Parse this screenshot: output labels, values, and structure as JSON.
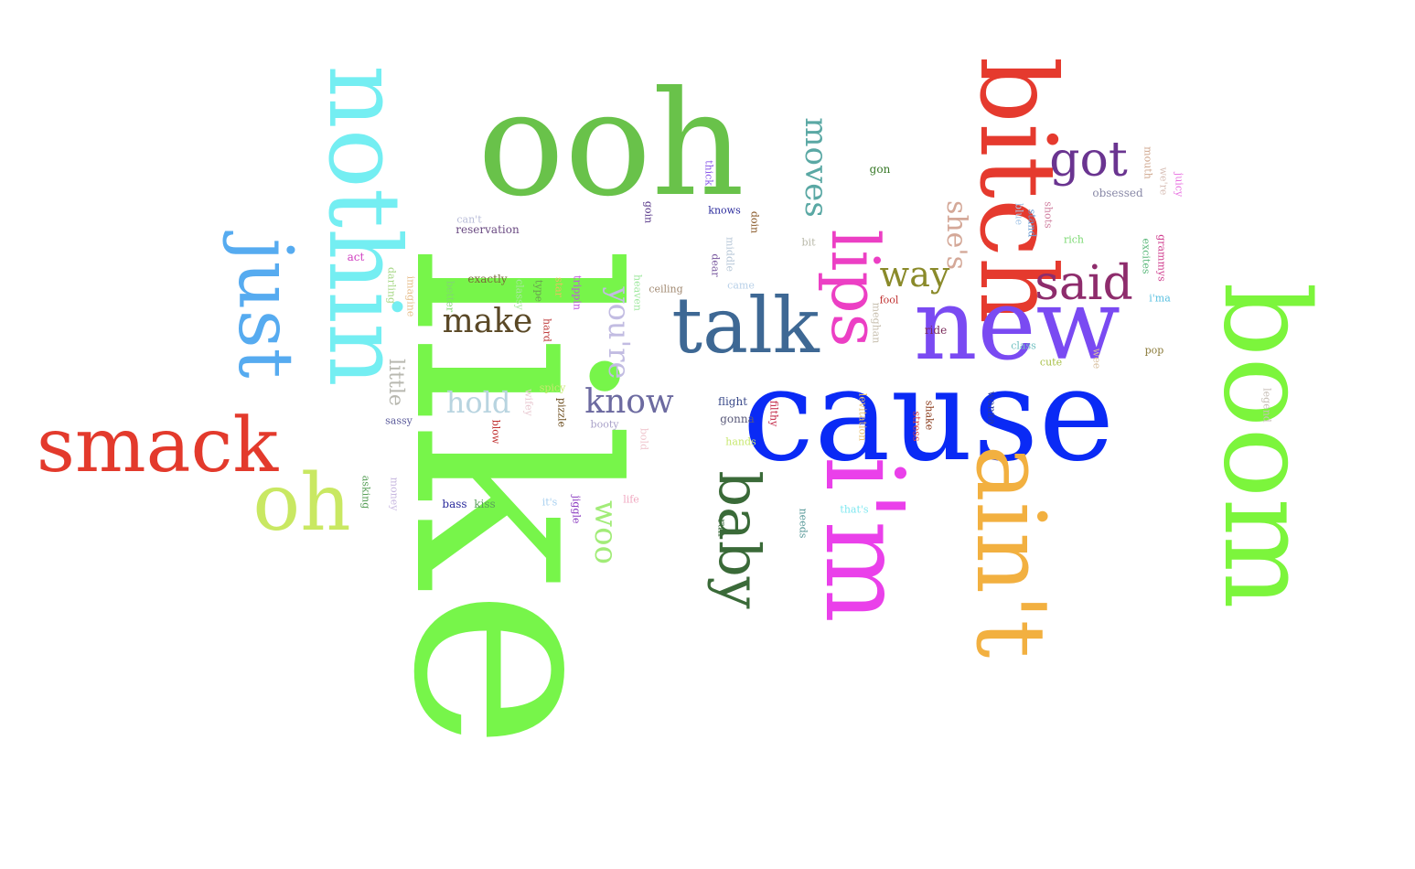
{
  "words": [
    {
      "text": "like",
      "color": "#77f54a"
    },
    {
      "text": "cause",
      "color": "#0a2af5"
    },
    {
      "text": "ooh",
      "color": "#69c24a"
    },
    {
      "text": "boom",
      "color": "#7cf53c"
    },
    {
      "text": "nothin",
      "color": "#74eef2"
    },
    {
      "text": "bitch",
      "color": "#e53a2e"
    },
    {
      "text": "i'm",
      "color": "#ea40ea"
    },
    {
      "text": "ain't",
      "color": "#f2b040"
    },
    {
      "text": "new",
      "color": "#7a4af2"
    },
    {
      "text": "smack",
      "color": "#e33a2c"
    },
    {
      "text": "lips",
      "color": "#ec3fc4"
    },
    {
      "text": "just",
      "color": "#56abf0"
    },
    {
      "text": "talk",
      "color": "#3e6894"
    },
    {
      "text": "oh",
      "color": "#c9e862"
    },
    {
      "text": "baby",
      "color": "#3a6a38"
    },
    {
      "text": "said",
      "color": "#8e2c6c"
    },
    {
      "text": "got",
      "color": "#6a3490"
    },
    {
      "text": "moves",
      "color": "#5aa8a4"
    },
    {
      "text": "woo",
      "color": "#a2ec78"
    },
    {
      "text": "know",
      "color": "#6c6aa0"
    },
    {
      "text": "make",
      "color": "#5a4826"
    },
    {
      "text": "she's",
      "color": "#d4a898"
    },
    {
      "text": "way",
      "color": "#8a8a2a"
    },
    {
      "text": "you're",
      "color": "#c2bce2"
    },
    {
      "text": "hold",
      "color": "#b8d4e0"
    },
    {
      "text": "little",
      "color": "#b8b8b0"
    },
    {
      "text": "can't",
      "color": "#b8bcd8"
    },
    {
      "text": "reservation",
      "color": "#6a4a82"
    },
    {
      "text": "thick",
      "color": "#8a5ae8"
    },
    {
      "text": "knows",
      "color": "#2a2a9c"
    },
    {
      "text": "doin",
      "color": "#8a5a2a"
    },
    {
      "text": "gon",
      "color": "#3a7a2a"
    },
    {
      "text": "mouth",
      "color": "#d0a890"
    },
    {
      "text": "we're",
      "color": "#d8c0b8"
    },
    {
      "text": "juicy",
      "color": "#e870e0"
    },
    {
      "text": "obsessed",
      "color": "#8a8aa8"
    },
    {
      "text": "shots",
      "color": "#d080a0"
    },
    {
      "text": "blue",
      "color": "#a8c8e8"
    },
    {
      "text": "stand",
      "color": "#6a9ad0"
    },
    {
      "text": "rich",
      "color": "#7ad870"
    },
    {
      "text": "grammys",
      "color": "#d04090"
    },
    {
      "text": "excites",
      "color": "#5ab87a"
    },
    {
      "text": "i'ma",
      "color": "#5ac0e0"
    },
    {
      "text": "bit",
      "color": "#b8b8a8"
    },
    {
      "text": "middle",
      "color": "#b8c8d8"
    },
    {
      "text": "dear",
      "color": "#7a5aa0"
    },
    {
      "text": "came",
      "color": "#b8d0e8"
    },
    {
      "text": "goin",
      "color": "#5a3a8a"
    },
    {
      "text": "act",
      "color": "#d040c0"
    },
    {
      "text": "darling",
      "color": "#a8d888"
    },
    {
      "text": "imagine",
      "color": "#e8c090"
    },
    {
      "text": "better",
      "color": "#80d870"
    },
    {
      "text": "exactly",
      "color": "#7a6a3a"
    },
    {
      "text": "classy",
      "color": "#a8e8a0"
    },
    {
      "text": "type",
      "color": "#6aa050"
    },
    {
      "text": "star",
      "color": "#e8c060"
    },
    {
      "text": "trippin",
      "color": "#c050e0"
    },
    {
      "text": "heaven",
      "color": "#a0e8a0"
    },
    {
      "text": "ceiling",
      "color": "#a08870"
    },
    {
      "text": "hard",
      "color": "#c04040"
    },
    {
      "text": "fool",
      "color": "#c03030"
    },
    {
      "text": "meghan",
      "color": "#c8c0b0"
    },
    {
      "text": "ride",
      "color": "#7a2a5a"
    },
    {
      "text": "class",
      "color": "#70c0c0"
    },
    {
      "text": "cute",
      "color": "#a8c048"
    },
    {
      "text": "wee",
      "color": "#d8c0a0"
    },
    {
      "text": "pop",
      "color": "#8a7a3a"
    },
    {
      "text": "legend",
      "color": "#c8c0b8"
    },
    {
      "text": "spicy",
      "color": "#c8e870"
    },
    {
      "text": "wifey",
      "color": "#e8c8d0"
    },
    {
      "text": "pizzle",
      "color": "#6a4a1a"
    },
    {
      "text": "sassy",
      "color": "#5a5a9a"
    },
    {
      "text": "blow",
      "color": "#c03030"
    },
    {
      "text": "booty",
      "color": "#a8a0c8"
    },
    {
      "text": "bold",
      "color": "#f0c8d0"
    },
    {
      "text": "flight",
      "color": "#3a4a8a"
    },
    {
      "text": "gonna",
      "color": "#5a5a7a"
    },
    {
      "text": "hands",
      "color": "#c8e870"
    },
    {
      "text": "filthy",
      "color": "#c02040"
    },
    {
      "text": "levitation",
      "color": "#e8c070"
    },
    {
      "text": "stress",
      "color": "#d84040"
    },
    {
      "text": "shake",
      "color": "#8a3a1a"
    },
    {
      "text": "wanna",
      "color": "#2a3aa0"
    },
    {
      "text": "asking",
      "color": "#5aa05a"
    },
    {
      "text": "money",
      "color": "#c8b8e0"
    },
    {
      "text": "bass",
      "color": "#2a2a9c"
    },
    {
      "text": "kiss",
      "color": "#5aa05a"
    },
    {
      "text": "it's",
      "color": "#a8d0f0"
    },
    {
      "text": "jiggle",
      "color": "#8a3ac0"
    },
    {
      "text": "life",
      "color": "#f0a8c0"
    },
    {
      "text": "run",
      "color": "#3a6a3a"
    },
    {
      "text": "needs",
      "color": "#5a9a9a"
    },
    {
      "text": "that's",
      "color": "#80e8f0"
    }
  ]
}
